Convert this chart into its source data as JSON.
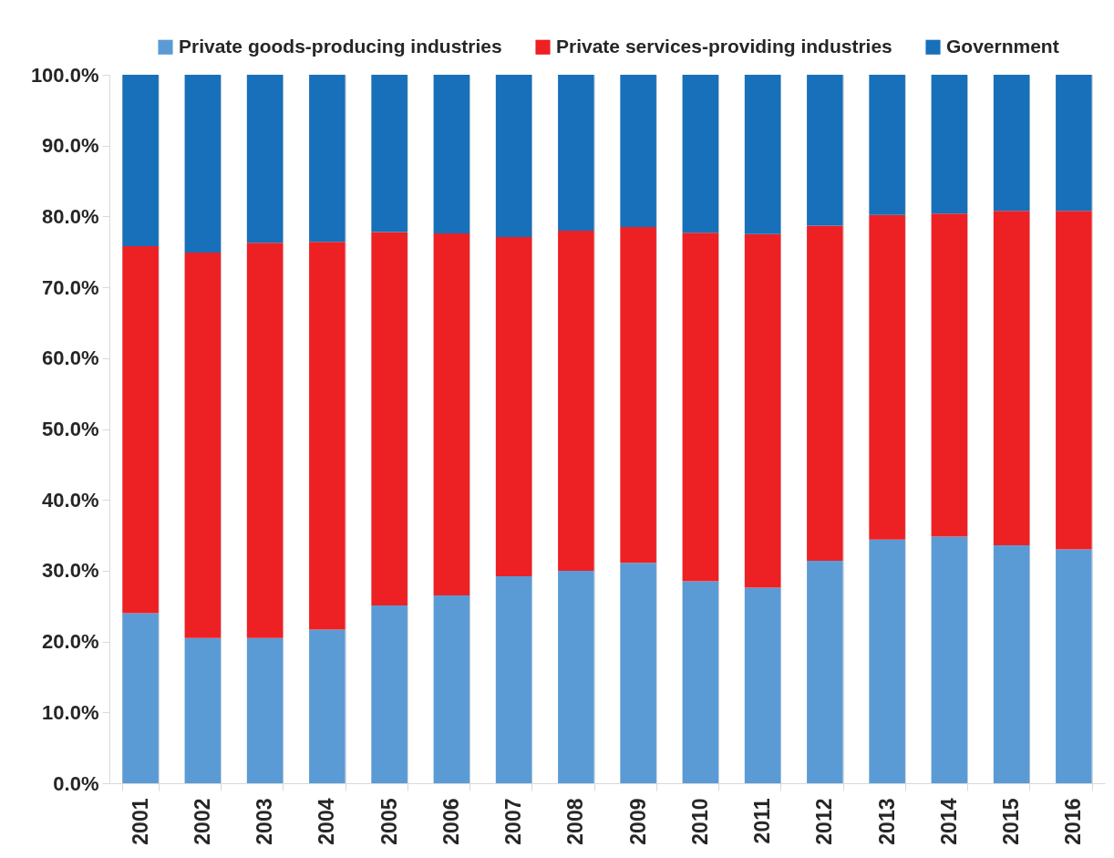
{
  "chart_data": {
    "type": "bar",
    "stacked": true,
    "legend": "top",
    "grid": "x",
    "categories": [
      "2001",
      "2002",
      "2003",
      "2004",
      "2005",
      "2006",
      "2007",
      "2008",
      "2009",
      "2010",
      "2011",
      "2012",
      "2013",
      "2014",
      "2015",
      "2016"
    ],
    "series": [
      {
        "name": "Private goods-producing industries",
        "color": "#5b9bd5",
        "values": [
          24.0,
          20.5,
          20.5,
          21.7,
          25.1,
          26.5,
          29.2,
          30.0,
          31.1,
          28.5,
          27.6,
          31.4,
          34.4,
          34.8,
          33.6,
          33.0
        ]
      },
      {
        "name": "Private services-providing industries",
        "color": "#ed2024",
        "values": [
          51.8,
          54.4,
          55.8,
          54.7,
          52.7,
          51.1,
          47.9,
          48.0,
          47.4,
          49.2,
          49.9,
          47.3,
          45.8,
          45.6,
          47.2,
          47.8
        ]
      },
      {
        "name": "Government",
        "color": "#1770b9",
        "values": [
          24.2,
          25.1,
          23.7,
          23.6,
          22.2,
          22.4,
          22.9,
          22.0,
          21.5,
          22.3,
          22.5,
          21.3,
          19.8,
          19.6,
          19.2,
          19.2
        ]
      }
    ],
    "ylim": [
      0,
      100
    ],
    "yticks": [
      {
        "value": 0,
        "label": "0.0%"
      },
      {
        "value": 10,
        "label": "10.0%"
      },
      {
        "value": 20,
        "label": "20.0%"
      },
      {
        "value": 30,
        "label": "30.0%"
      },
      {
        "value": 40,
        "label": "40.0%"
      },
      {
        "value": 50,
        "label": "50.0%"
      },
      {
        "value": 60,
        "label": "60.0%"
      },
      {
        "value": 70,
        "label": "70.0%"
      },
      {
        "value": 80,
        "label": "80.0%"
      },
      {
        "value": 90,
        "label": "90.0%"
      },
      {
        "value": 100,
        "label": "100.0%"
      }
    ]
  }
}
